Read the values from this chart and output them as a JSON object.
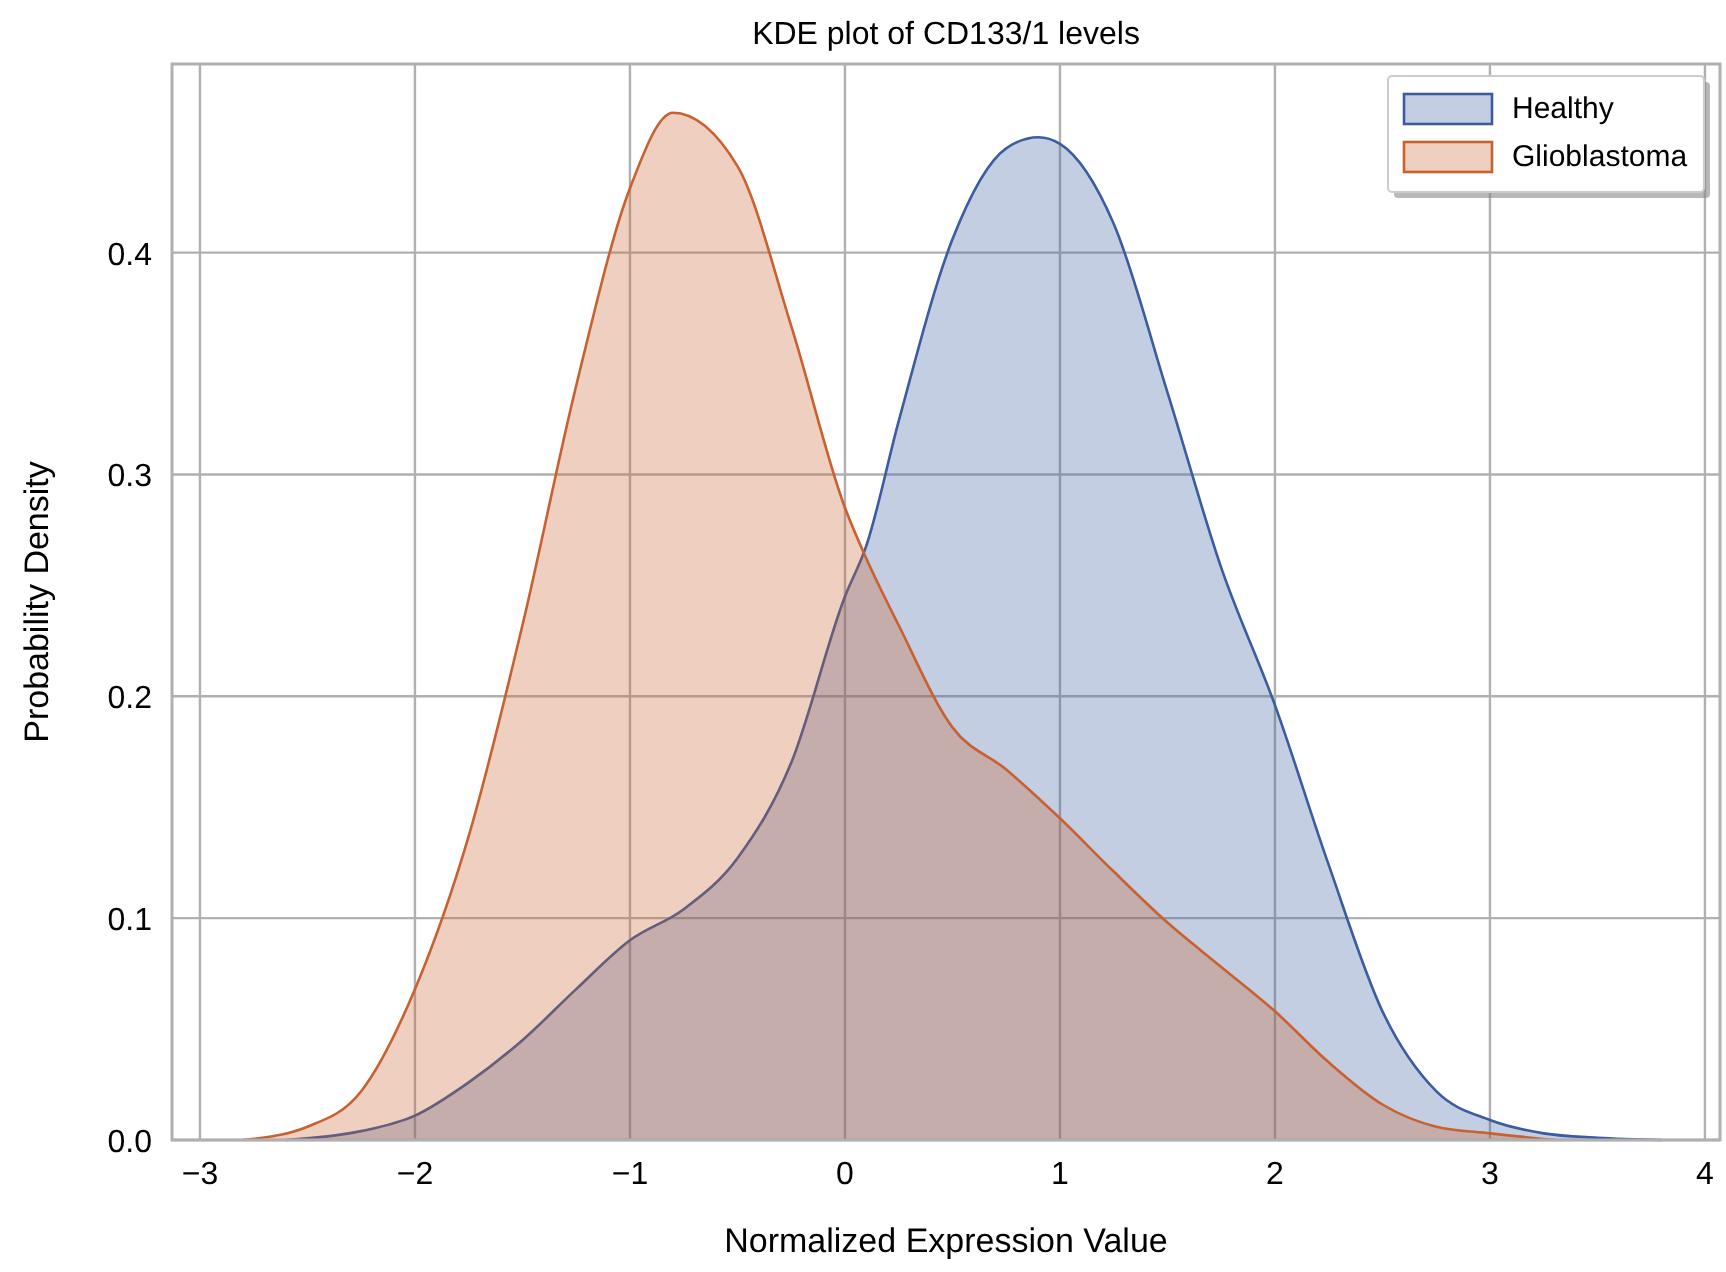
{
  "chart_data": {
    "type": "area",
    "title": "KDE plot of CD133/1 levels",
    "xlabel": "Normalized Expression Value",
    "ylabel": "Probability Density",
    "xlim": [
      -3.13,
      4.07
    ],
    "ylim": [
      0,
      0.485
    ],
    "xticks": [
      -3,
      -2,
      -1,
      0,
      1,
      2,
      3,
      4
    ],
    "yticks": [
      {
        "value": 0,
        "label": "0.0"
      },
      {
        "value": 0.1,
        "label": "0.1"
      },
      {
        "value": 0.2,
        "label": "0.2"
      },
      {
        "value": 0.3,
        "label": "0.3"
      },
      {
        "value": 0.4,
        "label": "0.4"
      }
    ],
    "grid": true,
    "legend": "top right",
    "series": [
      {
        "name": "Healthy",
        "color": "#3b5c9e",
        "x": [
          -2.6,
          -2.25,
          -2,
          -1.75,
          -1.5,
          -1.25,
          -1,
          -0.75,
          -0.5,
          -0.25,
          0,
          0.1,
          0.25,
          0.5,
          0.75,
          0.9,
          1,
          1.25,
          1.5,
          1.75,
          2,
          2.25,
          2.5,
          2.75,
          3,
          3.25,
          3.5,
          3.8
        ],
        "values": [
          0,
          0.004,
          0.011,
          0.026,
          0.045,
          0.068,
          0.09,
          0.104,
          0.127,
          0.17,
          0.245,
          0.268,
          0.324,
          0.406,
          0.447,
          0.452,
          0.449,
          0.413,
          0.337,
          0.258,
          0.196,
          0.124,
          0.058,
          0.022,
          0.009,
          0.003,
          0.001,
          0
        ]
      },
      {
        "name": "Glioblastoma",
        "color": "#c8612f",
        "x": [
          -2.8,
          -2.5,
          -2.25,
          -2,
          -1.75,
          -1.5,
          -1.25,
          -1,
          -0.8,
          -0.5,
          -0.25,
          0,
          0.1,
          0.25,
          0.5,
          0.75,
          1,
          1.25,
          1.5,
          1.75,
          2,
          2.25,
          2.5,
          2.75,
          3,
          3.3
        ],
        "values": [
          0,
          0.006,
          0.022,
          0.068,
          0.137,
          0.232,
          0.34,
          0.429,
          0.463,
          0.439,
          0.367,
          0.285,
          0.262,
          0.232,
          0.186,
          0.167,
          0.145,
          0.121,
          0.098,
          0.078,
          0.058,
          0.035,
          0.016,
          0.006,
          0.003,
          0
        ]
      }
    ]
  }
}
